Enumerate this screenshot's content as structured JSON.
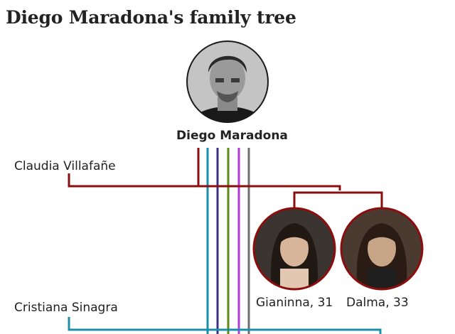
{
  "title": "Diego Maradona's family tree",
  "root": {
    "name": "Diego Maradona",
    "photo": "portrait-photo"
  },
  "partners": [
    {
      "name": "Claudia Villafañe",
      "line_color": "#8b0d0d",
      "children": [
        {
          "name": "Gianinna, 31",
          "photo": "portrait-photo",
          "ring_color": "#8b0d0d"
        },
        {
          "name": "Dalma, 33",
          "photo": "portrait-photo",
          "ring_color": "#8b0d0d"
        }
      ]
    },
    {
      "name": "Cristiana Sinagra",
      "line_color": "#1b8fa8",
      "children": []
    }
  ],
  "other_lines": [
    "#1b8fa8",
    "#3d2f84",
    "#5a8a12",
    "#b23ad8",
    "#6e6e6e"
  ],
  "colors": {
    "text": "#222222",
    "villafane": "#8b0d0d",
    "sinagra": "#1b8fa8"
  }
}
